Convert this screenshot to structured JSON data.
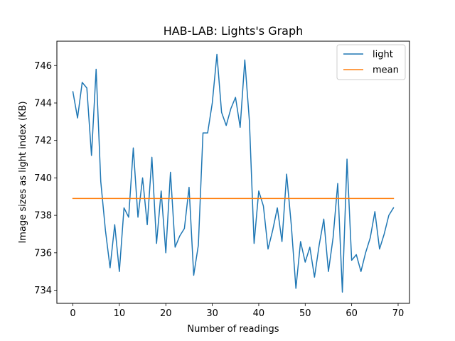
{
  "chart_data": {
    "type": "line",
    "title": "HAB-LAB: Lights's Graph",
    "xlabel": "Number of readings",
    "ylabel": "Image sizes as light index (KB)",
    "xlim": [
      -3.45,
      72.45
    ],
    "ylim": [
      733.3,
      747.3
    ],
    "xticks": [
      0,
      10,
      20,
      30,
      40,
      50,
      60,
      70
    ],
    "yticks": [
      734,
      736,
      738,
      740,
      742,
      744,
      746
    ],
    "grid": false,
    "legend_position": "top-right",
    "series": [
      {
        "name": "light",
        "color": "#1f77b4",
        "x": [
          0,
          1,
          2,
          3,
          4,
          5,
          6,
          7,
          8,
          9,
          10,
          11,
          12,
          13,
          14,
          15,
          16,
          17,
          18,
          19,
          20,
          21,
          22,
          23,
          24,
          25,
          26,
          27,
          28,
          29,
          30,
          31,
          32,
          33,
          34,
          35,
          36,
          37,
          38,
          39,
          40,
          41,
          42,
          43,
          44,
          45,
          46,
          47,
          48,
          49,
          50,
          51,
          52,
          53,
          54,
          55,
          56,
          57,
          58,
          59,
          60,
          61,
          62,
          63,
          64,
          65,
          66,
          67,
          68,
          69
        ],
        "values": [
          744.6,
          743.2,
          745.1,
          744.8,
          741.2,
          745.8,
          739.8,
          737.2,
          735.2,
          737.5,
          735.0,
          738.4,
          737.9,
          741.6,
          737.9,
          740.0,
          737.5,
          741.1,
          736.5,
          739.3,
          736.0,
          740.3,
          736.3,
          736.9,
          737.3,
          739.5,
          734.8,
          736.4,
          742.4,
          742.4,
          744.0,
          746.6,
          743.5,
          742.8,
          743.7,
          744.3,
          742.7,
          746.3,
          743.0,
          736.5,
          739.3,
          738.5,
          736.2,
          737.2,
          738.4,
          736.6,
          740.2,
          737.5,
          734.1,
          736.6,
          735.5,
          736.3,
          734.7,
          736.4,
          737.8,
          735.0,
          736.8,
          739.7,
          733.9,
          741.0,
          735.6,
          735.9,
          735.0,
          736.0,
          736.8,
          738.2,
          736.2,
          737.0,
          738.0,
          738.4
        ]
      },
      {
        "name": "mean",
        "color": "#ff7f0e",
        "x": [
          0,
          69
        ],
        "values": [
          738.9,
          738.9
        ]
      }
    ]
  }
}
